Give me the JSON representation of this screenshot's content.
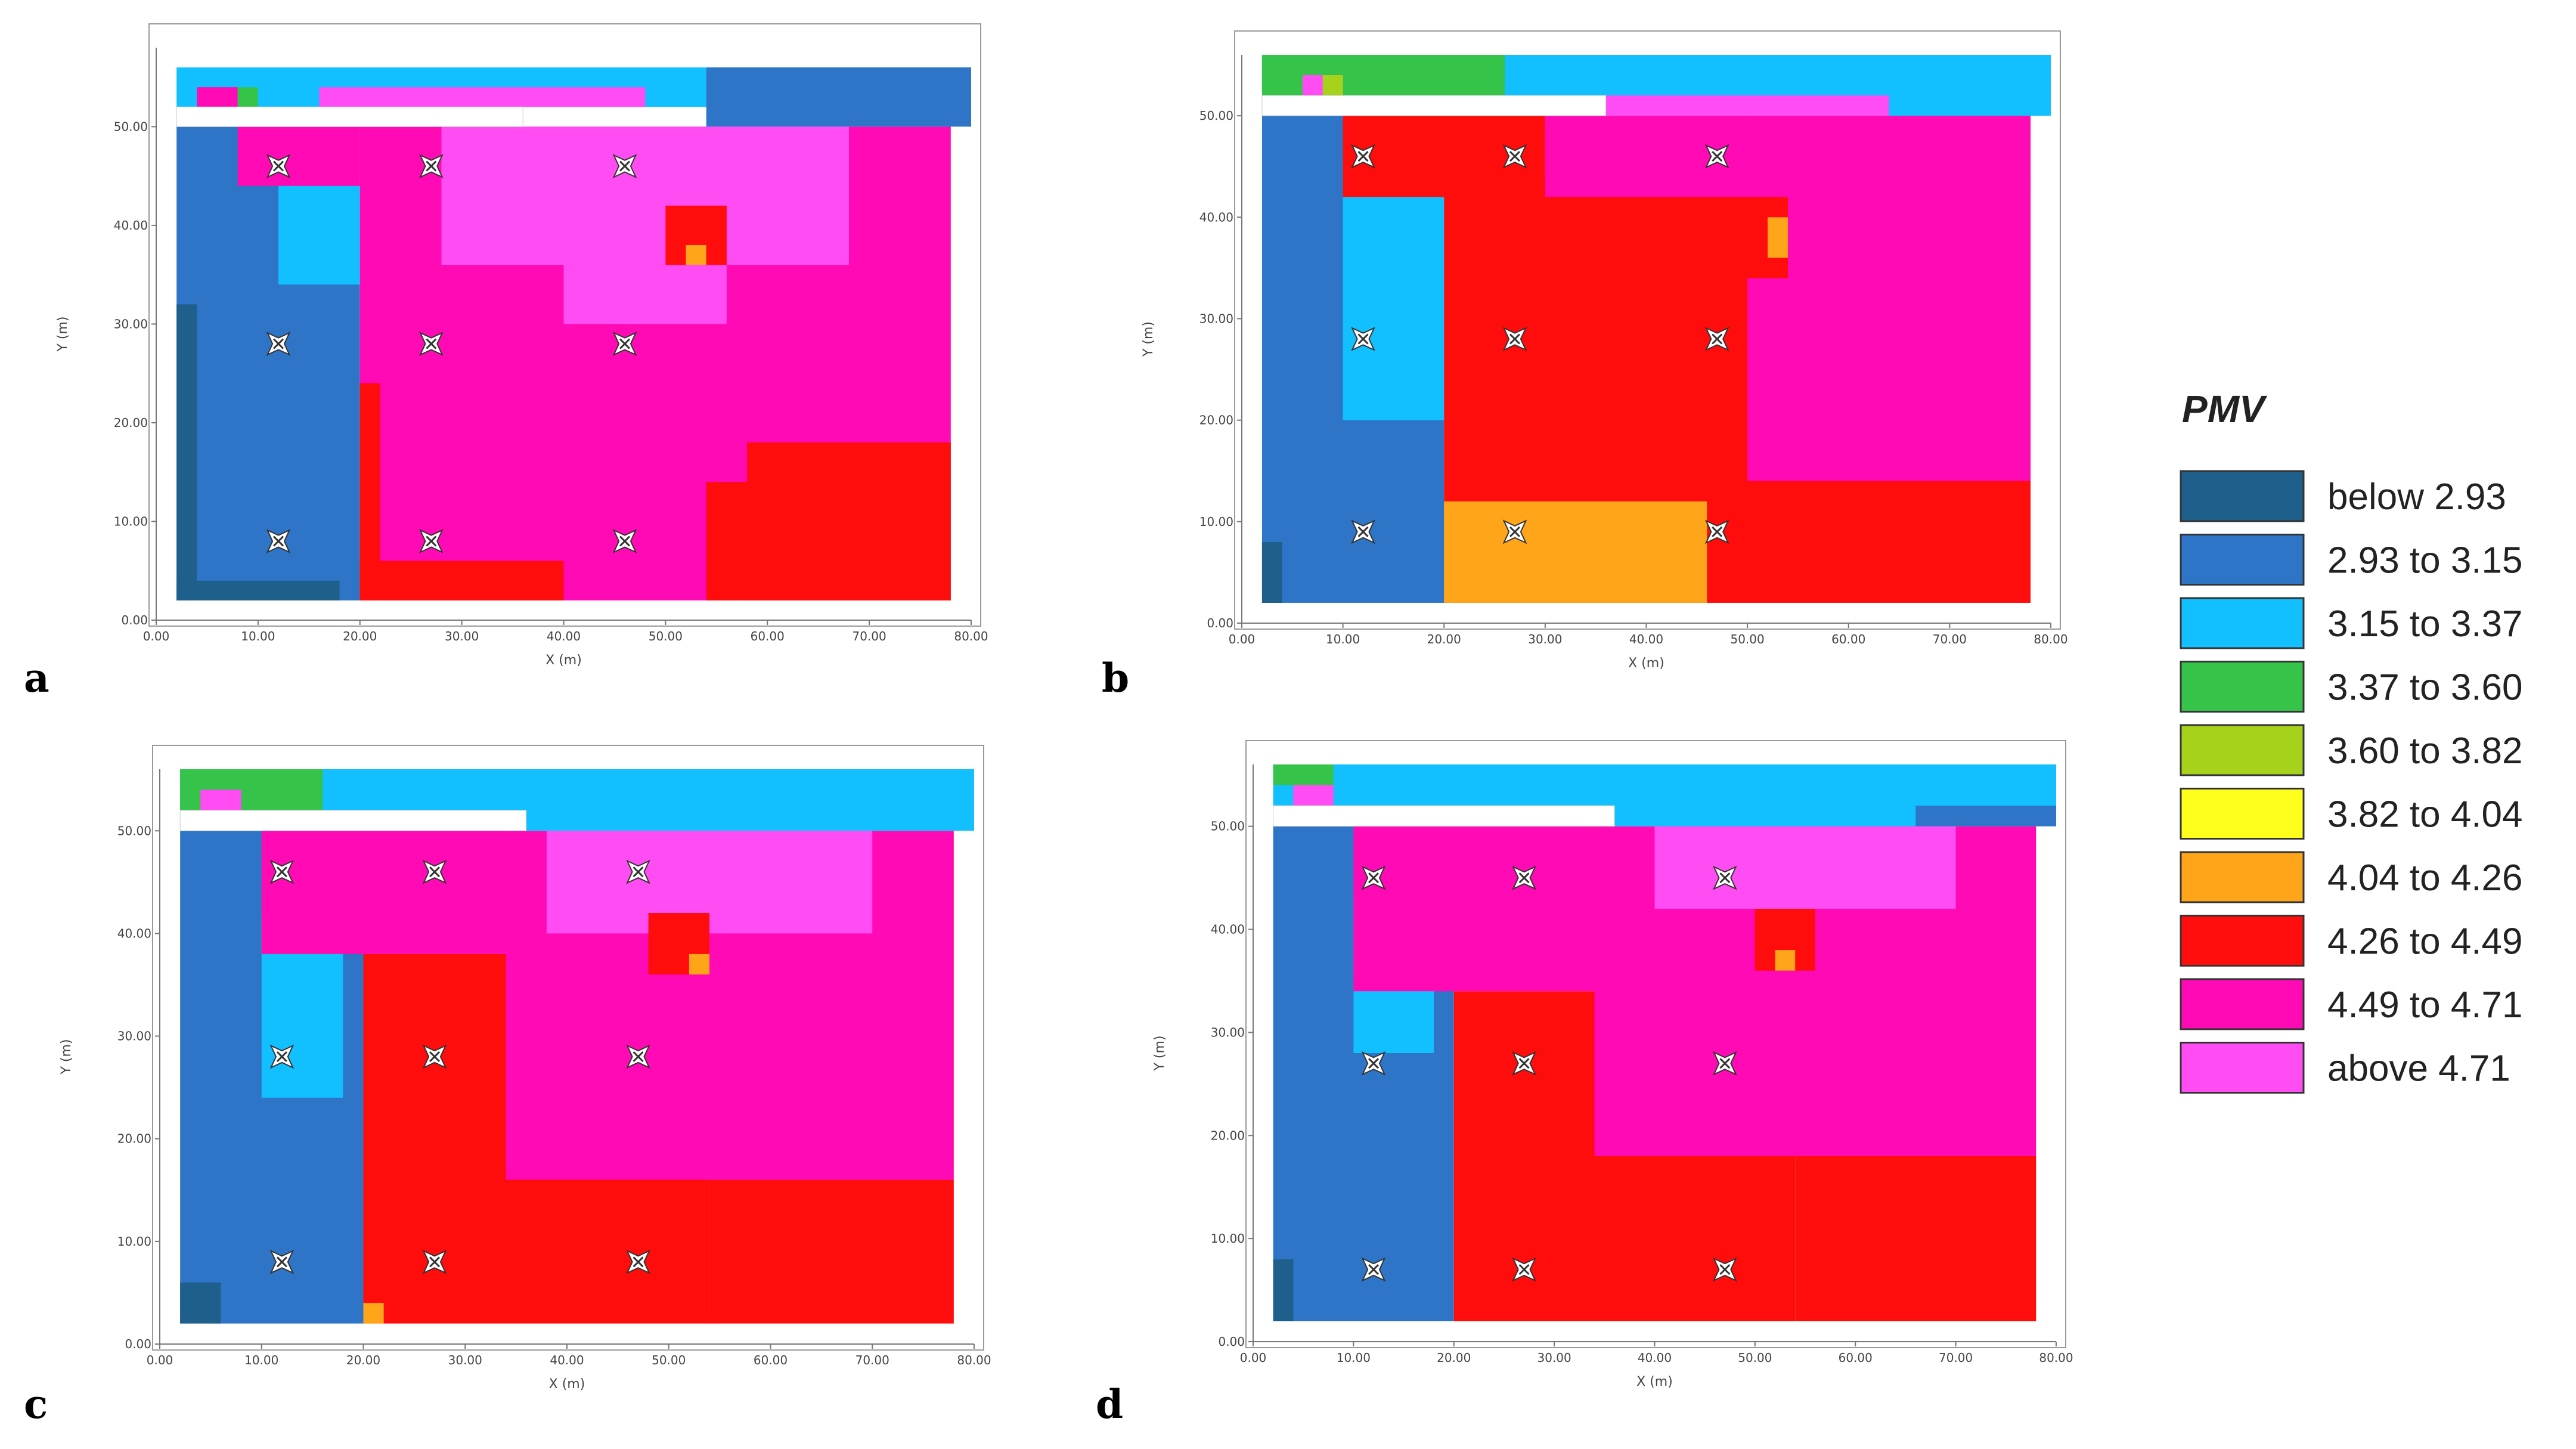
{
  "legend": {
    "title": "PMV",
    "items": [
      {
        "label": "below 2.93",
        "color": "#1f5f8b"
      },
      {
        "label": "2.93 to 3.15",
        "color": "#2e75c8"
      },
      {
        "label": "3.15 to 3.37",
        "color": "#12bfff"
      },
      {
        "label": "3.37 to 3.60",
        "color": "#36c34a"
      },
      {
        "label": "3.60 to 3.82",
        "color": "#a6d21c"
      },
      {
        "label": "3.82 to 4.04",
        "color": "#ffff1e"
      },
      {
        "label": "4.04 to 4.26",
        "color": "#ffa51a"
      },
      {
        "label": "4.26 to 4.49",
        "color": "#ff0c0c"
      },
      {
        "label": "4.49 to 4.71",
        "color": "#ff0ab4"
      },
      {
        "label": "above 4.71",
        "color": "#ff4cf3"
      }
    ]
  },
  "chart_data": [
    {
      "type": "heatmap",
      "panel": "a",
      "xlabel": "X (m)",
      "ylabel": "Y (m)",
      "xlim": [
        0,
        80
      ],
      "ylim": [
        0,
        58
      ],
      "xticks": [
        "0.00",
        "10.00",
        "20.00",
        "30.00",
        "40.00",
        "50.00",
        "60.00",
        "70.00",
        "80.00"
      ],
      "yticks": [
        "0.00",
        "10.00",
        "20.00",
        "30.00",
        "40.00",
        "50.00"
      ],
      "sensors": [
        [
          12,
          46
        ],
        [
          27,
          46
        ],
        [
          46,
          46
        ],
        [
          12,
          28
        ],
        [
          27,
          28
        ],
        [
          46,
          28
        ],
        [
          12,
          8
        ],
        [
          27,
          8
        ],
        [
          46,
          8
        ]
      ],
      "zones": [
        {
          "level": "2.93 to 3.15",
          "x": [
            2,
            20
          ],
          "y": [
            2,
            50
          ]
        },
        {
          "level": "below 2.93",
          "x": [
            2,
            4
          ],
          "y": [
            2,
            32
          ]
        },
        {
          "level": "below 2.93",
          "x": [
            2,
            18
          ],
          "y": [
            2,
            4
          ]
        },
        {
          "level": "3.15 to 3.37",
          "x": [
            12,
            20
          ],
          "y": [
            34,
            44
          ]
        },
        {
          "level": "4.49 to 4.71",
          "x": [
            20,
            78
          ],
          "y": [
            2,
            50
          ]
        },
        {
          "level": "4.49 to 4.71",
          "x": [
            8,
            20
          ],
          "y": [
            44,
            50
          ]
        },
        {
          "level": "above 4.71",
          "x": [
            28,
            68
          ],
          "y": [
            36,
            50
          ]
        },
        {
          "level": "above 4.71",
          "x": [
            40,
            56
          ],
          "y": [
            30,
            36
          ]
        },
        {
          "level": "4.26 to 4.49",
          "x": [
            20,
            22
          ],
          "y": [
            2,
            24
          ]
        },
        {
          "level": "4.26 to 4.49",
          "x": [
            20,
            40
          ],
          "y": [
            2,
            6
          ]
        },
        {
          "level": "4.26 to 4.49",
          "x": [
            58,
            78
          ],
          "y": [
            2,
            18
          ]
        },
        {
          "level": "4.26 to 4.49",
          "x": [
            54,
            60
          ],
          "y": [
            2,
            14
          ]
        },
        {
          "level": "4.26 to 4.49",
          "x": [
            50,
            56
          ],
          "y": [
            36,
            42
          ]
        },
        {
          "level": "4.04 to 4.26",
          "x": [
            52,
            54
          ],
          "y": [
            36,
            38
          ]
        },
        {
          "level": "3.15 to 3.37",
          "x": [
            2,
            80
          ],
          "y": [
            52,
            56
          ]
        },
        {
          "level": "2.93 to 3.15",
          "x": [
            54,
            80
          ],
          "y": [
            50,
            56
          ]
        },
        {
          "level": "4.49 to 4.71",
          "x": [
            4,
            8
          ],
          "y": [
            52,
            54
          ]
        },
        {
          "level": "above 4.71",
          "x": [
            16,
            48
          ],
          "y": [
            52,
            54
          ]
        },
        {
          "level": "3.37 to 3.60",
          "x": [
            8,
            10
          ],
          "y": [
            52,
            54
          ]
        }
      ]
    },
    {
      "type": "heatmap",
      "panel": "b",
      "xlabel": "X (m)",
      "ylabel": "Y (m)",
      "xlim": [
        0,
        80
      ],
      "ylim": [
        0,
        56
      ],
      "xticks": [
        "0.00",
        "10.00",
        "20.00",
        "30.00",
        "40.00",
        "50.00",
        "60.00",
        "70.00",
        "80.00"
      ],
      "yticks": [
        "0.00",
        "10.00",
        "20.00",
        "30.00",
        "40.00",
        "50.00"
      ],
      "sensors": [
        [
          12,
          46
        ],
        [
          27,
          46
        ],
        [
          47,
          46
        ],
        [
          12,
          28
        ],
        [
          27,
          28
        ],
        [
          47,
          28
        ],
        [
          12,
          9
        ],
        [
          27,
          9
        ],
        [
          47,
          9
        ]
      ],
      "zones": [
        {
          "level": "2.93 to 3.15",
          "x": [
            2,
            20
          ],
          "y": [
            2,
            50
          ]
        },
        {
          "level": "below 2.93",
          "x": [
            2,
            4
          ],
          "y": [
            2,
            8
          ]
        },
        {
          "level": "3.15 to 3.37",
          "x": [
            10,
            20
          ],
          "y": [
            20,
            46
          ]
        },
        {
          "level": "4.26 to 4.49",
          "x": [
            20,
            78
          ],
          "y": [
            2,
            44
          ]
        },
        {
          "level": "4.26 to 4.49",
          "x": [
            10,
            30
          ],
          "y": [
            42,
            50
          ]
        },
        {
          "level": "4.49 to 4.71",
          "x": [
            50,
            78
          ],
          "y": [
            14,
            50
          ]
        },
        {
          "level": "4.49 to 4.71",
          "x": [
            30,
            78
          ],
          "y": [
            42,
            50
          ]
        },
        {
          "level": "4.26 to 4.49",
          "x": [
            48,
            54
          ],
          "y": [
            34,
            42
          ]
        },
        {
          "level": "4.04 to 4.26",
          "x": [
            52,
            54
          ],
          "y": [
            36,
            40
          ]
        },
        {
          "level": "4.04 to 4.26",
          "x": [
            20,
            46
          ],
          "y": [
            2,
            12
          ]
        },
        {
          "level": "3.15 to 3.37",
          "x": [
            2,
            80
          ],
          "y": [
            50,
            56
          ]
        },
        {
          "level": "3.37 to 3.60",
          "x": [
            2,
            26
          ],
          "y": [
            52,
            56
          ]
        },
        {
          "level": "above 4.71",
          "x": [
            6,
            10
          ],
          "y": [
            52,
            54
          ]
        },
        {
          "level": "3.60 to 3.82",
          "x": [
            8,
            10
          ],
          "y": [
            52,
            54
          ]
        },
        {
          "level": "above 4.71",
          "x": [
            36,
            64
          ],
          "y": [
            50,
            52
          ]
        }
      ]
    },
    {
      "type": "heatmap",
      "panel": "c",
      "xlabel": "X (m)",
      "ylabel": "Y (m)",
      "xlim": [
        0,
        80
      ],
      "ylim": [
        0,
        56
      ],
      "xticks": [
        "0.00",
        "10.00",
        "20.00",
        "30.00",
        "40.00",
        "50.00",
        "60.00",
        "70.00",
        "80.00"
      ],
      "yticks": [
        "0.00",
        "10.00",
        "20.00",
        "30.00",
        "40.00",
        "50.00"
      ],
      "sensors": [
        [
          12,
          46
        ],
        [
          27,
          46
        ],
        [
          47,
          46
        ],
        [
          12,
          28
        ],
        [
          27,
          28
        ],
        [
          47,
          28
        ],
        [
          12,
          8
        ],
        [
          27,
          8
        ],
        [
          47,
          8
        ]
      ],
      "zones": [
        {
          "level": "2.93 to 3.15",
          "x": [
            2,
            20
          ],
          "y": [
            2,
            50
          ]
        },
        {
          "level": "below 2.93",
          "x": [
            2,
            6
          ],
          "y": [
            2,
            6
          ]
        },
        {
          "level": "3.15 to 3.37",
          "x": [
            10,
            18
          ],
          "y": [
            24,
            42
          ]
        },
        {
          "level": "4.26 to 4.49",
          "x": [
            20,
            54
          ],
          "y": [
            2,
            38
          ]
        },
        {
          "level": "4.26 to 4.49",
          "x": [
            54,
            78
          ],
          "y": [
            2,
            16
          ]
        },
        {
          "level": "4.49 to 4.71",
          "x": [
            34,
            78
          ],
          "y": [
            16,
            50
          ]
        },
        {
          "level": "4.49 to 4.71",
          "x": [
            10,
            34
          ],
          "y": [
            38,
            50
          ]
        },
        {
          "level": "above 4.71",
          "x": [
            38,
            70
          ],
          "y": [
            40,
            50
          ]
        },
        {
          "level": "4.26 to 4.49",
          "x": [
            48,
            54
          ],
          "y": [
            36,
            42
          ]
        },
        {
          "level": "4.04 to 4.26",
          "x": [
            52,
            54
          ],
          "y": [
            36,
            38
          ]
        },
        {
          "level": "4.04 to 4.26",
          "x": [
            20,
            22
          ],
          "y": [
            2,
            4
          ]
        },
        {
          "level": "3.15 to 3.37",
          "x": [
            2,
            80
          ],
          "y": [
            50,
            56
          ]
        },
        {
          "level": "3.37 to 3.60",
          "x": [
            2,
            16
          ],
          "y": [
            52,
            56
          ]
        },
        {
          "level": "above 4.71",
          "x": [
            4,
            8
          ],
          "y": [
            52,
            54
          ]
        }
      ]
    },
    {
      "type": "heatmap",
      "panel": "d",
      "xlabel": "X (m)",
      "ylabel": "Y (m)",
      "xlim": [
        0,
        80
      ],
      "ylim": [
        0,
        56
      ],
      "xticks": [
        "0.00",
        "10.00",
        "20.00",
        "30.00",
        "40.00",
        "50.00",
        "60.00",
        "70.00",
        "80.00"
      ],
      "yticks": [
        "0.00",
        "10.00",
        "20.00",
        "30.00",
        "40.00",
        "50.00"
      ],
      "sensors": [
        [
          12,
          45
        ],
        [
          27,
          45
        ],
        [
          47,
          45
        ],
        [
          12,
          27
        ],
        [
          27,
          27
        ],
        [
          47,
          27
        ],
        [
          12,
          7
        ],
        [
          27,
          7
        ],
        [
          47,
          7
        ]
      ],
      "zones": [
        {
          "level": "2.93 to 3.15",
          "x": [
            2,
            20
          ],
          "y": [
            2,
            50
          ]
        },
        {
          "level": "below 2.93",
          "x": [
            2,
            4
          ],
          "y": [
            2,
            8
          ]
        },
        {
          "level": "3.15 to 3.37",
          "x": [
            10,
            18
          ],
          "y": [
            28,
            44
          ]
        },
        {
          "level": "4.26 to 4.49",
          "x": [
            20,
            54
          ],
          "y": [
            2,
            34
          ]
        },
        {
          "level": "4.26 to 4.49",
          "x": [
            54,
            78
          ],
          "y": [
            2,
            18
          ]
        },
        {
          "level": "4.49 to 4.71",
          "x": [
            34,
            78
          ],
          "y": [
            18,
            50
          ]
        },
        {
          "level": "4.49 to 4.71",
          "x": [
            10,
            34
          ],
          "y": [
            34,
            50
          ]
        },
        {
          "level": "above 4.71",
          "x": [
            40,
            70
          ],
          "y": [
            42,
            50
          ]
        },
        {
          "level": "4.26 to 4.49",
          "x": [
            50,
            56
          ],
          "y": [
            36,
            42
          ]
        },
        {
          "level": "4.04 to 4.26",
          "x": [
            52,
            54
          ],
          "y": [
            36,
            38
          ]
        },
        {
          "level": "3.15 to 3.37",
          "x": [
            2,
            80
          ],
          "y": [
            50,
            56
          ]
        },
        {
          "level": "2.93 to 3.15",
          "x": [
            66,
            80
          ],
          "y": [
            50,
            52
          ]
        },
        {
          "level": "3.37 to 3.60",
          "x": [
            2,
            8
          ],
          "y": [
            54,
            56
          ]
        },
        {
          "level": "above 4.71",
          "x": [
            4,
            8
          ],
          "y": [
            52,
            54
          ]
        }
      ]
    }
  ]
}
